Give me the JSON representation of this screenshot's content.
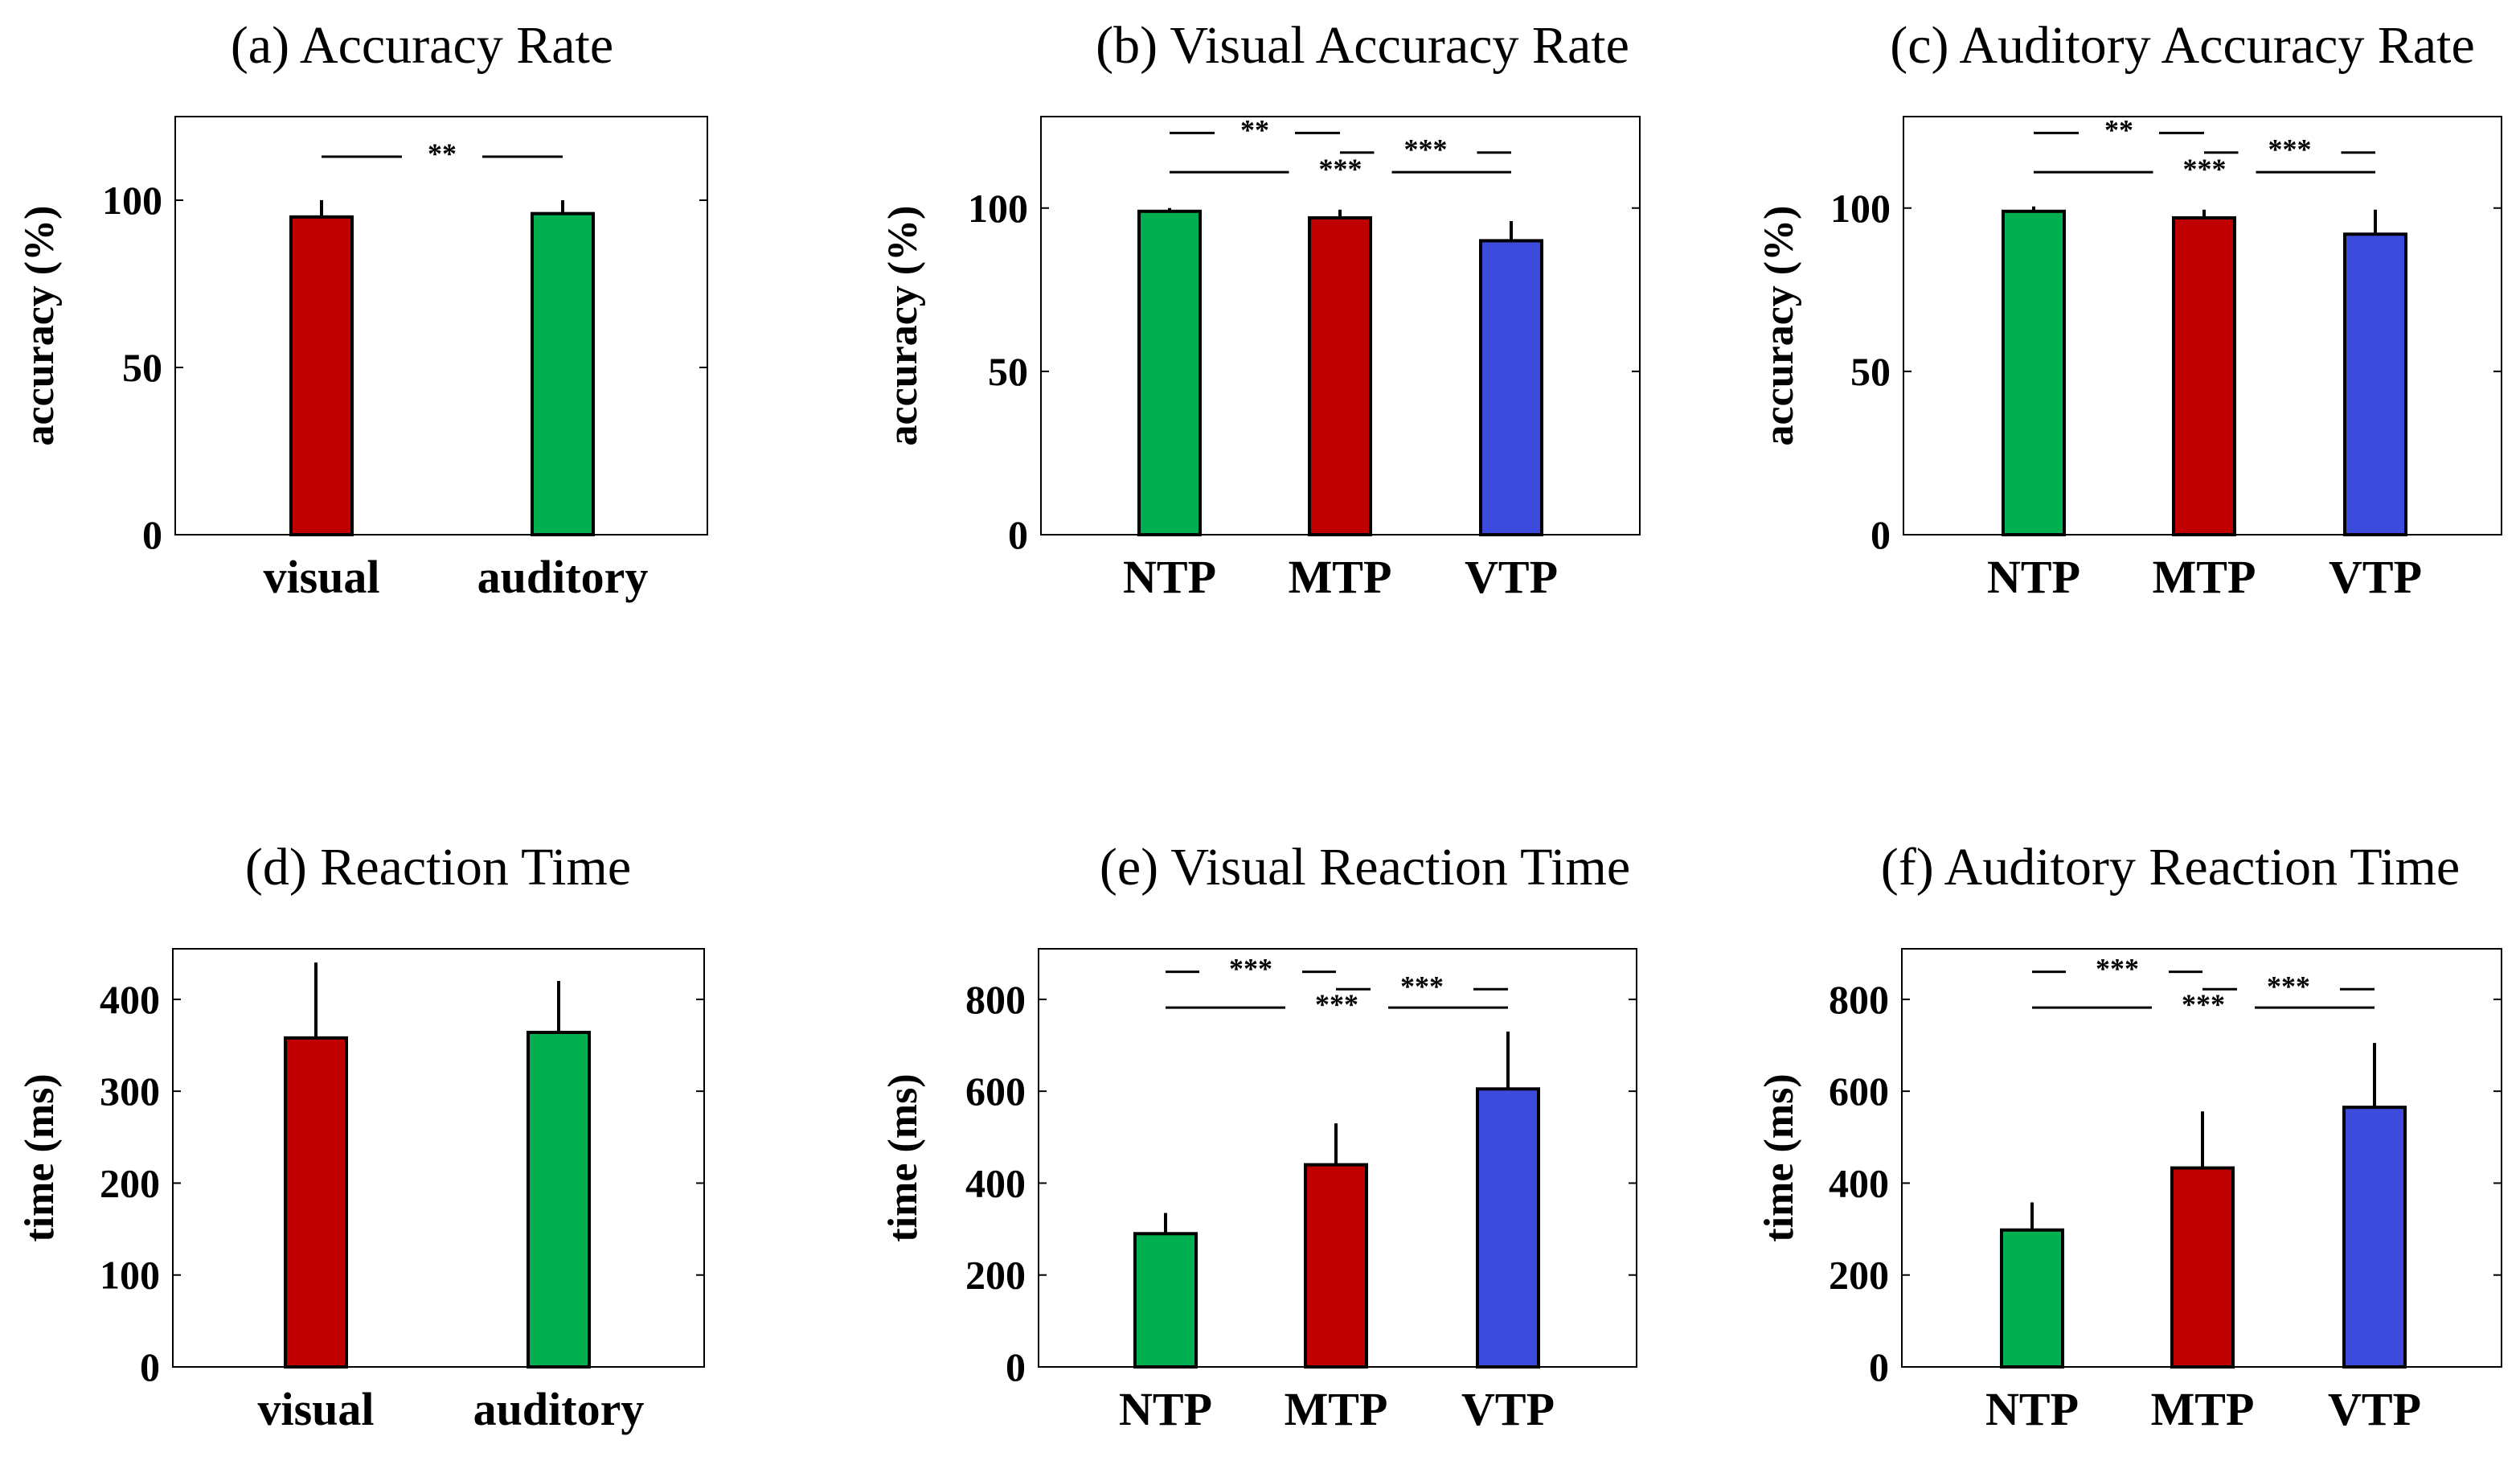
{
  "chart_data": [
    {
      "id": "a",
      "type": "bar",
      "title": "(a)   Accuracy Rate",
      "ylabel": "accuracy (%)",
      "categories": [
        "visual",
        "auditory"
      ],
      "values": [
        95,
        96
      ],
      "errors": [
        5,
        4
      ],
      "colors": [
        "#c00000",
        "#00b050"
      ],
      "ylim": [
        0,
        125
      ],
      "yticks": [
        0,
        50,
        100
      ],
      "significance": [
        {
          "from": 0,
          "to": 1,
          "label": "**",
          "y": 113
        }
      ]
    },
    {
      "id": "b",
      "type": "bar",
      "title": "(b)  Visual Accuracy Rate",
      "ylabel": "accuracy (%)",
      "categories": [
        "NTP",
        "MTP",
        "VTP"
      ],
      "values": [
        99,
        97,
        90
      ],
      "errors": [
        1,
        2.5,
        6
      ],
      "colors": [
        "#00b050",
        "#c00000",
        "#3c4bdc"
      ],
      "ylim": [
        0,
        128
      ],
      "yticks": [
        0,
        50,
        100
      ],
      "significance": [
        {
          "from": 0,
          "to": 1,
          "label": "**",
          "y": 123
        },
        {
          "from": 1,
          "to": 2,
          "label": "***",
          "y": 117
        },
        {
          "from": 0,
          "to": 2,
          "label": "***",
          "y": 111
        }
      ]
    },
    {
      "id": "c",
      "type": "bar",
      "title": "(c) Auditory Accuracy Rate",
      "ylabel": "accuracy (%)",
      "categories": [
        "NTP",
        "MTP",
        "VTP"
      ],
      "values": [
        99,
        97,
        92
      ],
      "errors": [
        1.5,
        2.5,
        7.5
      ],
      "colors": [
        "#00b050",
        "#c00000",
        "#3c4bdc"
      ],
      "ylim": [
        0,
        128
      ],
      "yticks": [
        0,
        50,
        100
      ],
      "significance": [
        {
          "from": 0,
          "to": 1,
          "label": "**",
          "y": 123
        },
        {
          "from": 1,
          "to": 2,
          "label": "***",
          "y": 117
        },
        {
          "from": 0,
          "to": 2,
          "label": "***",
          "y": 111
        }
      ]
    },
    {
      "id": "d",
      "type": "bar",
      "title": "(d)   Reaction Time",
      "ylabel": "time (ms)",
      "categories": [
        "visual",
        "auditory"
      ],
      "values": [
        358,
        364
      ],
      "errors": [
        82,
        56
      ],
      "colors": [
        "#c00000",
        "#00b050"
      ],
      "ylim": [
        0,
        455
      ],
      "yticks": [
        0,
        100,
        200,
        300,
        400
      ],
      "significance": []
    },
    {
      "id": "e",
      "type": "bar",
      "title": "(e)  Visual Reaction Time",
      "ylabel": "time (ms)",
      "categories": [
        "NTP",
        "MTP",
        "VTP"
      ],
      "values": [
        290,
        440,
        605
      ],
      "errors": [
        45,
        90,
        125
      ],
      "colors": [
        "#00b050",
        "#c00000",
        "#3c4bdc"
      ],
      "ylim": [
        0,
        910
      ],
      "yticks": [
        0,
        200,
        400,
        600,
        800
      ],
      "significance": [
        {
          "from": 0,
          "to": 1,
          "label": "***",
          "y": 860
        },
        {
          "from": 1,
          "to": 2,
          "label": "***",
          "y": 822
        },
        {
          "from": 0,
          "to": 2,
          "label": "***",
          "y": 782
        }
      ]
    },
    {
      "id": "f",
      "type": "bar",
      "title": "(f) Auditory Reaction Time",
      "ylabel": "time (ms)",
      "categories": [
        "NTP",
        "MTP",
        "VTP"
      ],
      "values": [
        298,
        433,
        565
      ],
      "errors": [
        60,
        123,
        140
      ],
      "colors": [
        "#00b050",
        "#c00000",
        "#3c4bdc"
      ],
      "ylim": [
        0,
        910
      ],
      "yticks": [
        0,
        200,
        400,
        600,
        800
      ],
      "significance": [
        {
          "from": 0,
          "to": 1,
          "label": "***",
          "y": 860
        },
        {
          "from": 1,
          "to": 2,
          "label": "***",
          "y": 822
        },
        {
          "from": 0,
          "to": 2,
          "label": "***",
          "y": 782
        }
      ]
    }
  ]
}
